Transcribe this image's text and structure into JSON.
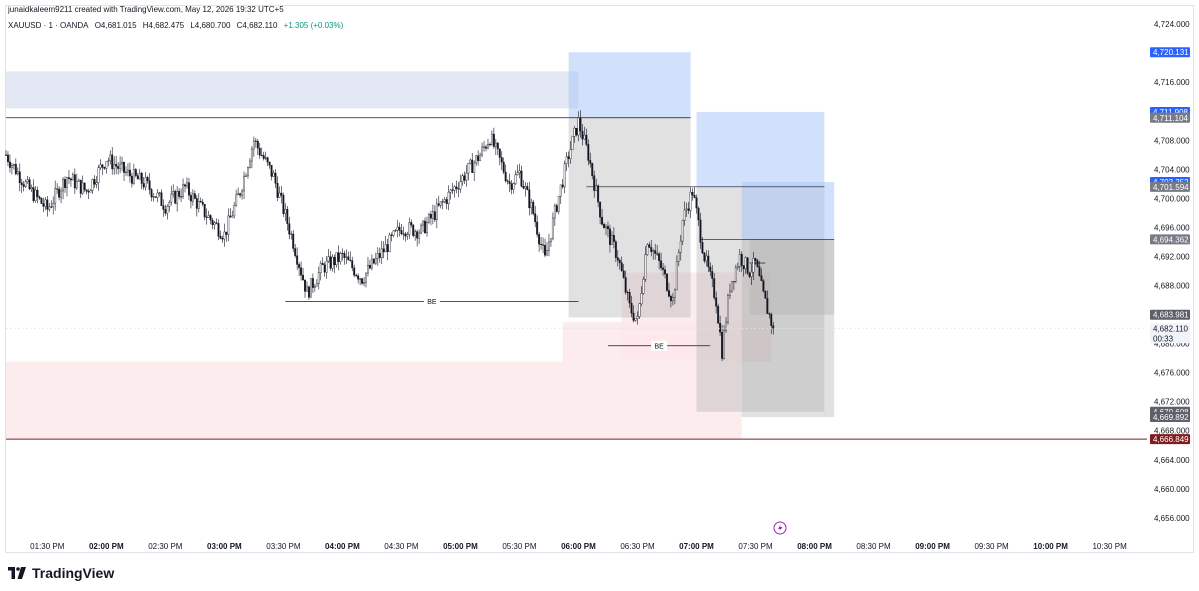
{
  "header": {
    "credit": "junaidkaleem9211 created with TradingView.com, May 12, 2026 19:32 UTC+5"
  },
  "symbol": {
    "name": "XAUUSD · 1 · OANDA",
    "open": "O4,681.015",
    "high": "H4,682.475",
    "low": "L4,680.700",
    "close": "C4,682.110",
    "change": "+1.305 (+0.03%)",
    "change_color": "#089981"
  },
  "brand": {
    "label": "TradingView"
  },
  "colors": {
    "up": "#131722",
    "down": "#131722",
    "supply_zone": "#e3e8f4",
    "demand_zone": "#fde9ea",
    "target_box": "#a5c3f7",
    "stop_box": "#b0b0b0",
    "red_line": "#7f1d1d"
  },
  "chart_data": {
    "type": "candlestick",
    "ylim": [
      4653.5,
      4726.5
    ],
    "yticks": [
      "4,724.000",
      "4,720.000",
      "4,716.000",
      "4,712.000",
      "4,708.000",
      "4,704.000",
      "4,700.000",
      "4,696.000",
      "4,692.000",
      "4,688.000",
      "4,684.000",
      "4,680.000",
      "4,676.000",
      "4,672.000",
      "4,668.000",
      "4,664.000",
      "4,660.000",
      "4,656.000"
    ],
    "ytick_values": [
      4724,
      4720,
      4716,
      4712,
      4708,
      4704,
      4700,
      4696,
      4692,
      4688,
      4684,
      4680,
      4676,
      4672,
      4668,
      4664,
      4660,
      4656
    ],
    "xticks": [
      {
        "label": "01:30 PM",
        "t": "13:30",
        "bold": false
      },
      {
        "label": "02:00 PM",
        "t": "14:00",
        "bold": true
      },
      {
        "label": "02:30 PM",
        "t": "14:30",
        "bold": false
      },
      {
        "label": "03:00 PM",
        "t": "15:00",
        "bold": true
      },
      {
        "label": "03:30 PM",
        "t": "15:30",
        "bold": false
      },
      {
        "label": "04:00 PM",
        "t": "16:00",
        "bold": true
      },
      {
        "label": "04:30 PM",
        "t": "16:30",
        "bold": false
      },
      {
        "label": "05:00 PM",
        "t": "17:00",
        "bold": true
      },
      {
        "label": "05:30 PM",
        "t": "17:30",
        "bold": false
      },
      {
        "label": "06:00 PM",
        "t": "18:00",
        "bold": true
      },
      {
        "label": "06:30 PM",
        "t": "18:30",
        "bold": false
      },
      {
        "label": "07:00 PM",
        "t": "19:00",
        "bold": true
      },
      {
        "label": "07:30 PM",
        "t": "19:30",
        "bold": false
      },
      {
        "label": "08:00 PM",
        "t": "20:00",
        "bold": true
      },
      {
        "label": "08:30 PM",
        "t": "20:30",
        "bold": false
      },
      {
        "label": "09:00 PM",
        "t": "21:00",
        "bold": true
      },
      {
        "label": "09:30 PM",
        "t": "21:30",
        "bold": false
      },
      {
        "label": "10:00 PM",
        "t": "22:00",
        "bold": true
      },
      {
        "label": "10:30 PM",
        "t": "22:30",
        "bold": false
      }
    ],
    "xlim": [
      "13:09",
      "22:49"
    ],
    "price_tags": [
      {
        "label": "4,720.131",
        "value": 4720.131,
        "color": "#2962ff"
      },
      {
        "label": "4,711.908",
        "value": 4711.908,
        "color": "#2962ff"
      },
      {
        "label": "4,711.104",
        "value": 4711.104,
        "color": "#787b86"
      },
      {
        "label": "4,702.252",
        "value": 4702.252,
        "color": "#2962ff"
      },
      {
        "label": "4,701.594",
        "value": 4701.594,
        "color": "#787b86"
      },
      {
        "label": "4,694.362",
        "value": 4694.362,
        "color": "#787b86"
      },
      {
        "label": "4,683.981",
        "value": 4683.981,
        "color": "#5d606b"
      },
      {
        "label": "4,670.608",
        "value": 4670.608,
        "color": "#5d606b"
      },
      {
        "label": "4,669.892",
        "value": 4669.892,
        "color": "#5d606b"
      },
      {
        "label": "4,666.849",
        "value": 4666.849,
        "color": "#7f1d1d"
      }
    ],
    "last_price": {
      "label": "4,682.110",
      "countdown": "00:33",
      "value": 4682.11
    },
    "zones": [
      {
        "kind": "supply",
        "t0": "13:09",
        "t1": "18:00",
        "top": 4717.5,
        "bottom": 4712.4
      },
      {
        "kind": "demand",
        "t0": "13:09",
        "t1": "19:23",
        "top": 4677.5,
        "bottom": 4666.9
      },
      {
        "kind": "demand",
        "t0": "17:52",
        "t1": "19:38",
        "top": 4683.0,
        "bottom": 4677.5
      },
      {
        "kind": "demand",
        "t0": "18:22",
        "t1": "19:38",
        "top": 4689.8,
        "bottom": 4677.5
      }
    ],
    "boxes": [
      {
        "kind": "target",
        "t0": "17:55",
        "t1": "18:57",
        "top": 4720.131,
        "bottom": 4711.104
      },
      {
        "kind": "stop",
        "t0": "17:55",
        "t1": "18:57",
        "top": 4711.104,
        "bottom": 4683.6
      },
      {
        "kind": "target",
        "t0": "19:00",
        "t1": "20:05",
        "top": 4711.908,
        "bottom": 4701.594
      },
      {
        "kind": "stop",
        "t0": "19:00",
        "t1": "20:05",
        "top": 4701.594,
        "bottom": 4670.608
      },
      {
        "kind": "target",
        "t0": "19:23",
        "t1": "20:10",
        "top": 4702.252,
        "bottom": 4694.362
      },
      {
        "kind": "stop",
        "t0": "19:23",
        "t1": "20:10",
        "top": 4694.362,
        "bottom": 4669.892
      },
      {
        "kind": "stop",
        "t0": "19:27",
        "t1": "20:10",
        "top": 4694.362,
        "bottom": 4683.981
      }
    ],
    "hlines": [
      {
        "t0": "13:09",
        "t1": "17:55",
        "value": 4711.104,
        "label": ""
      },
      {
        "t0": "17:55",
        "t1": "18:57",
        "value": 4711.104,
        "label": ""
      },
      {
        "t0": "18:04",
        "t1": "20:05",
        "value": 4701.594,
        "label": ""
      },
      {
        "t0": "19:02",
        "t1": "20:10",
        "value": 4694.362,
        "label": ""
      },
      {
        "t0": "15:31",
        "t1": "18:00",
        "value": 4685.8,
        "label": "BE"
      },
      {
        "t0": "18:15",
        "t1": "19:07",
        "value": 4679.7,
        "label": "BE"
      },
      {
        "t0": "19:27",
        "t1": "19:35",
        "value": 4691.1,
        "label": ""
      },
      {
        "t0": "13:09",
        "t1": "22:49",
        "value": 4666.849,
        "label": "",
        "color": "#7f1d1d"
      }
    ],
    "candles_anchor": [
      [
        "13:09",
        4706.0
      ],
      [
        "13:20",
        4701.5
      ],
      [
        "13:30",
        4698.5
      ],
      [
        "13:40",
        4703.0
      ],
      [
        "13:50",
        4701.0
      ],
      [
        "14:00",
        4705.5
      ],
      [
        "14:10",
        4703.5
      ],
      [
        "14:20",
        4702.0
      ],
      [
        "14:30",
        4699.0
      ],
      [
        "14:40",
        4701.5
      ],
      [
        "14:50",
        4698.0
      ],
      [
        "15:00",
        4695.0
      ],
      [
        "15:08",
        4701.0
      ],
      [
        "15:15",
        4708.0
      ],
      [
        "15:25",
        4703.0
      ],
      [
        "15:35",
        4694.0
      ],
      [
        "15:42",
        4687.0
      ],
      [
        "15:50",
        4690.5
      ],
      [
        "16:00",
        4692.0
      ],
      [
        "16:10",
        4689.0
      ],
      [
        "16:20",
        4692.5
      ],
      [
        "16:30",
        4696.0
      ],
      [
        "16:40",
        4695.5
      ],
      [
        "16:50",
        4699.0
      ],
      [
        "17:00",
        4702.5
      ],
      [
        "17:10",
        4706.0
      ],
      [
        "17:15",
        4708.5
      ],
      [
        "17:25",
        4702.0
      ],
      [
        "17:30",
        4703.5
      ],
      [
        "17:37",
        4698.0
      ],
      [
        "17:43",
        4691.5
      ],
      [
        "17:48",
        4698.0
      ],
      [
        "17:55",
        4706.0
      ],
      [
        "18:00",
        4710.5
      ],
      [
        "18:05",
        4706.0
      ],
      [
        "18:12",
        4697.0
      ],
      [
        "18:20",
        4692.0
      ],
      [
        "18:26",
        4685.0
      ],
      [
        "18:30",
        4683.0
      ],
      [
        "18:35",
        4694.5
      ],
      [
        "18:42",
        4690.5
      ],
      [
        "18:48",
        4686.0
      ],
      [
        "18:53",
        4697.0
      ],
      [
        "18:58",
        4701.0
      ],
      [
        "19:04",
        4692.0
      ],
      [
        "19:10",
        4686.0
      ],
      [
        "19:13",
        4679.0
      ],
      [
        "19:17",
        4688.0
      ],
      [
        "19:22",
        4692.0
      ],
      [
        "19:27",
        4690.0
      ],
      [
        "19:30",
        4691.0
      ],
      [
        "19:34",
        4686.5
      ],
      [
        "19:39",
        4682.1
      ]
    ]
  }
}
